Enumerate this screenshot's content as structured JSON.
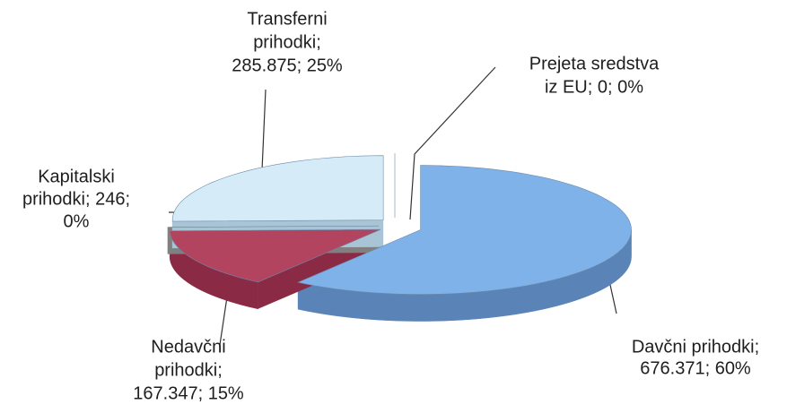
{
  "chart_data": {
    "type": "pie3d",
    "categories": [
      "Davčni prihodki",
      "Nedavčni prihodki",
      "Kapitalski prihodki",
      "Transferni prihodki",
      "Prejeta sredstva iz EU"
    ],
    "values": [
      676371,
      167347,
      246,
      285875,
      0
    ],
    "labels": [
      [
        "Davčni prihodki;",
        "676.371; 60%"
      ],
      [
        "Nedavčni",
        "prihodki;",
        "167.347; 15%"
      ],
      [
        "Kapitalski",
        "prihodki; 246;",
        "0%"
      ],
      [
        "Transferni",
        "prihodki;",
        "285.875; 25%"
      ],
      [
        "Prejeta sredstva",
        "iz EU; 0; 0%"
      ]
    ],
    "colors": [
      "#80b2ea",
      "#b3445f",
      "#a8a8a8",
      "#d5ecf8",
      "#9fc5e8"
    ],
    "side_colors": [
      "#5a84b8",
      "#8a2a44",
      "#808080",
      "#a9c4d4",
      "#7fa5c8"
    ]
  }
}
